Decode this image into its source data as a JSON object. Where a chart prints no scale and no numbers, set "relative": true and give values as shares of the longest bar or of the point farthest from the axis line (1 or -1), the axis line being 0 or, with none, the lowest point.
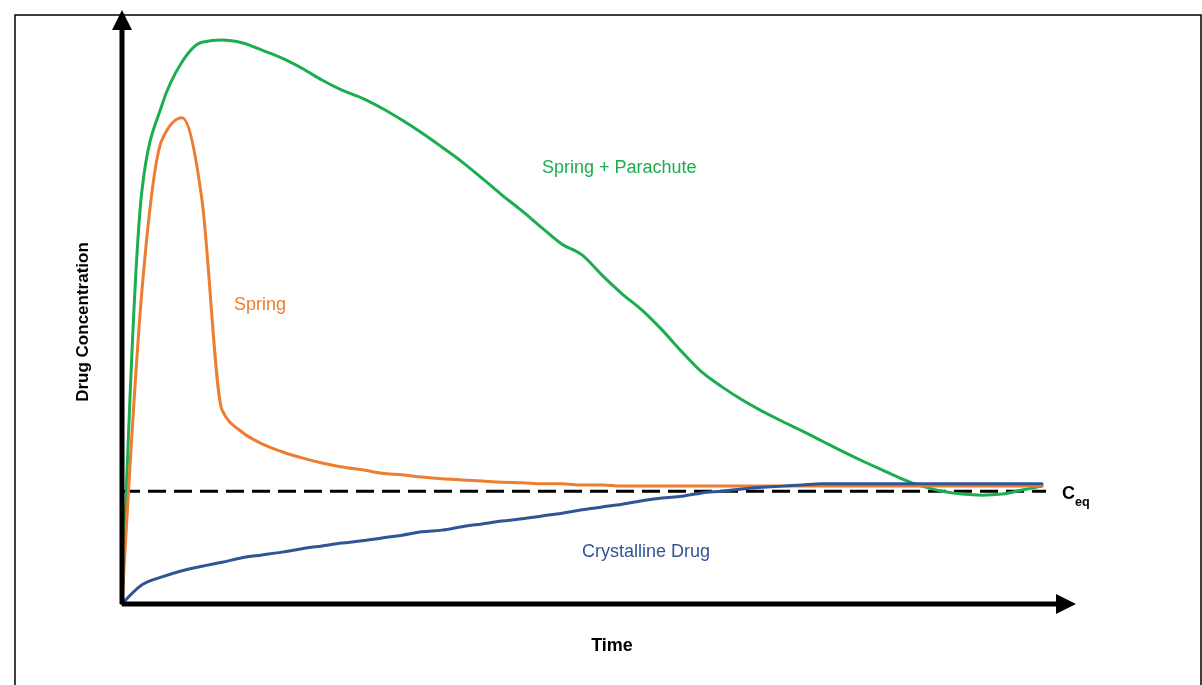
{
  "chart_data": {
    "type": "line",
    "relative": true,
    "xlabel": "Time",
    "ylabel": "Drug Concentration",
    "categories": [
      null,
      null,
      null,
      null,
      null,
      null,
      null,
      null,
      null,
      null,
      null,
      null,
      null,
      null,
      null,
      null,
      null,
      null,
      null,
      null,
      null,
      null,
      null,
      null,
      null,
      null,
      null,
      null,
      null,
      null,
      null,
      null,
      null,
      null,
      null,
      null,
      null,
      null,
      null,
      null,
      null,
      null,
      null,
      null,
      null,
      null,
      null
    ],
    "series": [
      {
        "name": "Spring + Parachute",
        "color": "#1aae4e",
        "values": [
          0,
          0.734,
          0.885,
          0.961,
          0.996,
          1,
          0.995,
          0.982,
          0.968,
          0.95,
          0.929,
          0.911,
          0.897,
          0.879,
          0.858,
          0.835,
          0.81,
          0.784,
          0.755,
          0.725,
          0.697,
          0.667,
          0.638,
          0.619,
          0.583,
          0.55,
          0.521,
          0.486,
          0.447,
          0.411,
          0.385,
          0.362,
          0.342,
          0.324,
          0.307,
          0.289,
          0.271,
          0.254,
          0.238,
          0.222,
          0.209,
          0.2,
          0.195,
          0.193,
          0.195,
          0.202,
          0.209
        ]
      },
      {
        "name": "Spring",
        "color": "#ed7d31",
        "values": [
          0,
          0.557,
          0.823,
          0.862,
          0.716,
          0.344,
          0.305,
          0.284,
          0.27,
          0.259,
          0.25,
          0.243,
          0.238,
          0.232,
          0.229,
          0.225,
          0.222,
          0.22,
          0.218,
          0.216,
          0.215,
          0.213,
          0.213,
          0.211,
          0.211,
          0.209,
          0.209,
          0.209,
          0.209,
          0.209,
          0.209,
          0.209,
          0.209,
          0.209,
          0.209,
          0.209,
          0.209,
          0.209,
          0.209,
          0.209,
          0.209,
          0.209,
          0.209,
          0.209,
          0.209,
          0.209,
          0.209
        ]
      },
      {
        "name": "Crystalline Drug",
        "color": "#2f5597",
        "values": [
          0,
          0.034,
          0.048,
          0.059,
          0.067,
          0.074,
          0.082,
          0.087,
          0.092,
          0.098,
          0.103,
          0.108,
          0.112,
          0.117,
          0.122,
          0.128,
          0.131,
          0.137,
          0.142,
          0.147,
          0.151,
          0.156,
          0.161,
          0.167,
          0.172,
          0.177,
          0.183,
          0.188,
          0.191,
          0.197,
          0.2,
          0.204,
          0.207,
          0.209,
          0.211,
          0.213,
          0.213,
          0.213,
          0.213,
          0.213,
          0.213,
          0.213,
          0.213,
          0.213,
          0.213,
          0.213,
          0.213
        ]
      }
    ],
    "ref_lines": [
      {
        "axis": "y",
        "value": 0.2,
        "label": "C$_{eq}$",
        "color": "#000000",
        "line_style": "dashed"
      }
    ]
  }
}
